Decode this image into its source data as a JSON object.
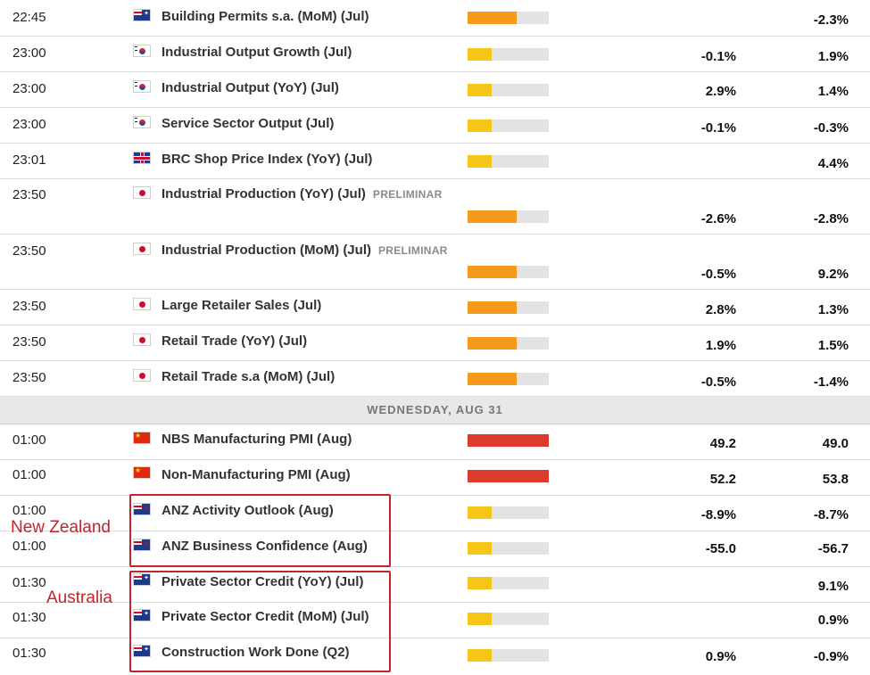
{
  "colors": {
    "impact_low": "#f5c518",
    "impact_medium": "#f59a1a",
    "impact_high": "#dd3b2e",
    "impact_track": "#e3e3e3",
    "annotation": "#c0252c"
  },
  "day_header": "WEDNESDAY, AUG 31",
  "annotations": {
    "new_zealand": "New Zealand",
    "australia": "Australia"
  },
  "events": [
    {
      "time": "22:45",
      "country_flag": "au-flag-icon",
      "event": "Building Permits s.a. (MoM) (Jul)",
      "tag": "",
      "impact": "medium",
      "forecast": "",
      "previous": "-2.3%"
    },
    {
      "time": "23:00",
      "country_flag": "kr-flag-icon",
      "event": "Industrial Output Growth (Jul)",
      "tag": "",
      "impact": "low",
      "forecast": "-0.1%",
      "previous": "1.9%"
    },
    {
      "time": "23:00",
      "country_flag": "kr-flag-icon",
      "event": "Industrial Output (YoY) (Jul)",
      "tag": "",
      "impact": "low",
      "forecast": "2.9%",
      "previous": "1.4%"
    },
    {
      "time": "23:00",
      "country_flag": "kr-flag-icon",
      "event": "Service Sector Output (Jul)",
      "tag": "",
      "impact": "low",
      "forecast": "-0.1%",
      "previous": "-0.3%"
    },
    {
      "time": "23:01",
      "country_flag": "gb-flag-icon",
      "event": "BRC Shop Price Index (YoY) (Jul)",
      "tag": "",
      "impact": "low",
      "forecast": "",
      "previous": "4.4%"
    },
    {
      "time": "23:50",
      "country_flag": "jp-flag-icon",
      "event": "Industrial Production (YoY) (Jul)",
      "tag": "PRELIMINAR",
      "impact": "medium",
      "forecast": "-2.6%",
      "previous": "-2.8%"
    },
    {
      "time": "23:50",
      "country_flag": "jp-flag-icon",
      "event": "Industrial Production (MoM) (Jul)",
      "tag": "PRELIMINAR",
      "impact": "medium",
      "forecast": "-0.5%",
      "previous": "9.2%"
    },
    {
      "time": "23:50",
      "country_flag": "jp-flag-icon",
      "event": "Large Retailer Sales (Jul)",
      "tag": "",
      "impact": "medium",
      "forecast": "2.8%",
      "previous": "1.3%"
    },
    {
      "time": "23:50",
      "country_flag": "jp-flag-icon",
      "event": "Retail Trade (YoY) (Jul)",
      "tag": "",
      "impact": "medium",
      "forecast": "1.9%",
      "previous": "1.5%"
    },
    {
      "time": "23:50",
      "country_flag": "jp-flag-icon",
      "event": "Retail Trade s.a (MoM) (Jul)",
      "tag": "",
      "impact": "medium",
      "forecast": "-0.5%",
      "previous": "-1.4%"
    },
    {
      "time": "01:00",
      "country_flag": "cn-flag-icon",
      "event": "NBS Manufacturing PMI (Aug)",
      "tag": "",
      "impact": "high",
      "forecast": "49.2",
      "previous": "49.0"
    },
    {
      "time": "01:00",
      "country_flag": "cn-flag-icon",
      "event": "Non-Manufacturing PMI (Aug)",
      "tag": "",
      "impact": "high",
      "forecast": "52.2",
      "previous": "53.8"
    },
    {
      "time": "01:00",
      "country_flag": "nz-flag-icon",
      "event": "ANZ Activity Outlook (Aug)",
      "tag": "",
      "impact": "low",
      "forecast": "-8.9%",
      "previous": "-8.7%"
    },
    {
      "time": "01:00",
      "country_flag": "nz-flag-icon",
      "event": "ANZ Business Confidence (Aug)",
      "tag": "",
      "impact": "low",
      "forecast": "-55.0",
      "previous": "-56.7"
    },
    {
      "time": "01:30",
      "country_flag": "au-flag-icon",
      "event": "Private Sector Credit (YoY) (Jul)",
      "tag": "",
      "impact": "low",
      "forecast": "",
      "previous": "9.1%"
    },
    {
      "time": "01:30",
      "country_flag": "au-flag-icon",
      "event": "Private Sector Credit (MoM) (Jul)",
      "tag": "",
      "impact": "low",
      "forecast": "",
      "previous": "0.9%"
    },
    {
      "time": "01:30",
      "country_flag": "au-flag-icon",
      "event": "Construction Work Done (Q2)",
      "tag": "",
      "impact": "low",
      "forecast": "0.9%",
      "previous": "-0.9%"
    }
  ]
}
